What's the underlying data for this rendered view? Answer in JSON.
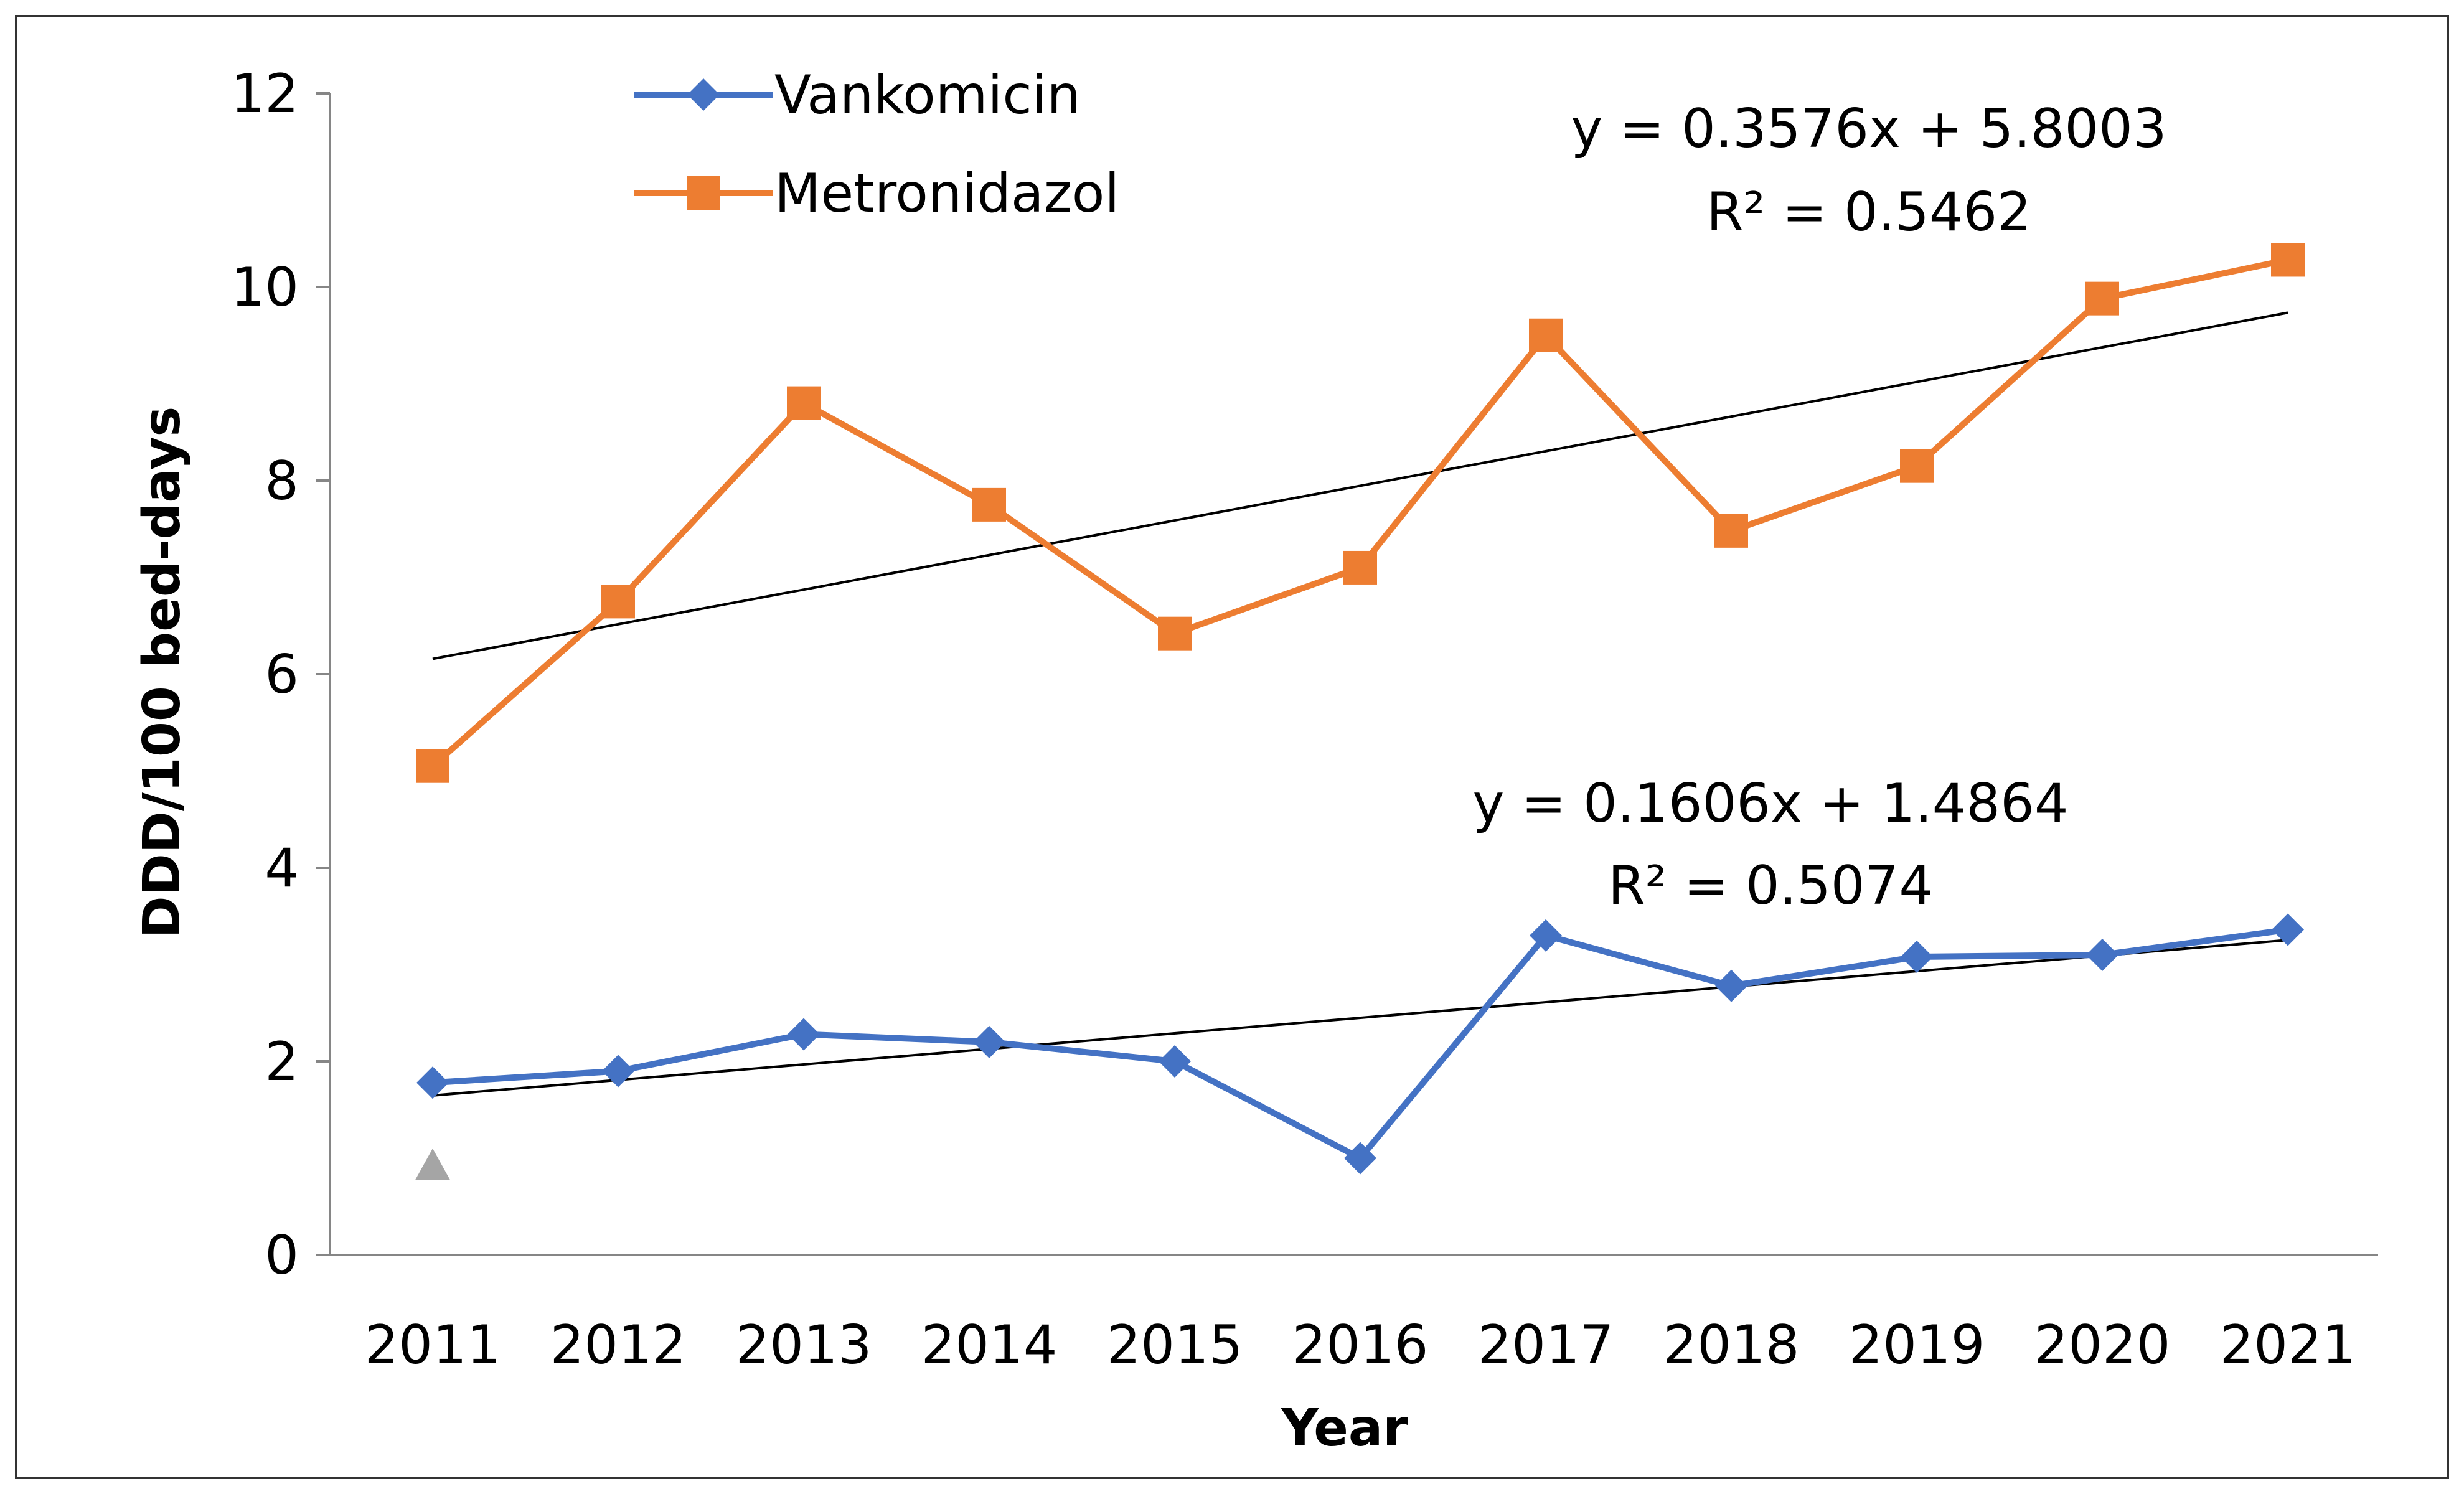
{
  "chart_data": {
    "type": "line",
    "title": "",
    "xlabel": "Year",
    "ylabel": "DDD/100 bed-days",
    "ylim": [
      0,
      12
    ],
    "yticks": [
      0,
      2,
      4,
      6,
      8,
      10,
      12
    ],
    "categories": [
      "2011",
      "2012",
      "2013",
      "2014",
      "2015",
      "2016",
      "2017",
      "2018",
      "2019",
      "2020",
      "2021"
    ],
    "series": [
      {
        "name": "Vankomicin",
        "color": "#4472C4",
        "marker": "diamond",
        "values": [
          1.78,
          1.9,
          2.28,
          2.2,
          2.0,
          1.0,
          3.3,
          2.78,
          3.08,
          3.1,
          3.36
        ]
      },
      {
        "name": "Metronidazol",
        "color": "#ED7D31",
        "marker": "square",
        "values": [
          5.05,
          6.75,
          8.8,
          7.75,
          6.42,
          7.1,
          9.5,
          7.48,
          8.15,
          9.88,
          10.28
        ]
      }
    ],
    "trendlines": [
      {
        "series": "Metronidazol",
        "slope": 0.3576,
        "intercept": 5.8003,
        "equation": "y = 0.3576x + 5.8003",
        "r2": "R² = 0.5462",
        "color": "#000000"
      },
      {
        "series": "Vankomicin",
        "slope": 0.1606,
        "intercept": 1.4864,
        "equation": "y = 0.1606x + 1.4864",
        "r2": "R² = 0.5074",
        "color": "#000000"
      }
    ],
    "extra_markers": [
      {
        "category": "2011",
        "value": 0.92,
        "shape": "triangle",
        "color": "#A5A5A5"
      }
    ],
    "grid": false,
    "legend_position": "top-left"
  }
}
